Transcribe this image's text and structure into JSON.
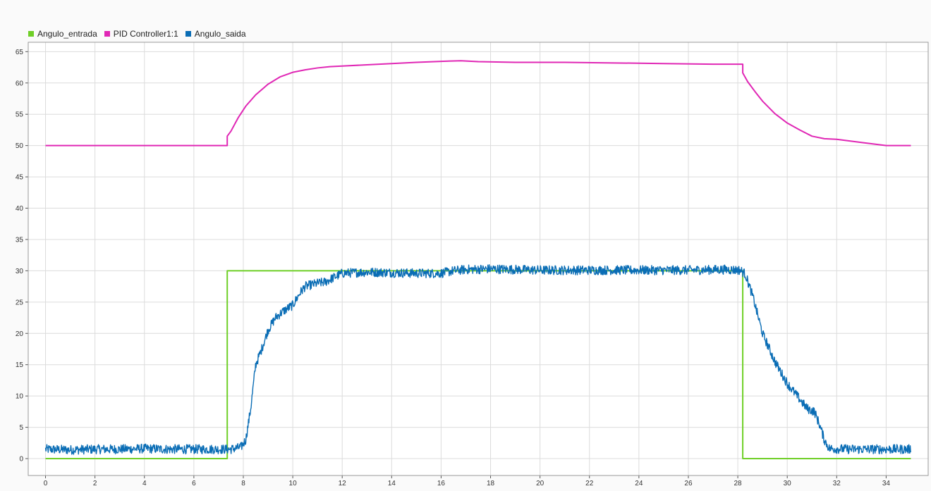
{
  "chart_data": {
    "type": "line",
    "title": "",
    "xlabel": "",
    "ylabel": "",
    "xlim": [
      -0.7,
      35.7
    ],
    "ylim": [
      -2.7,
      66.5
    ],
    "xticks": [
      0,
      2,
      4,
      6,
      8,
      10,
      12,
      14,
      16,
      18,
      20,
      22,
      24,
      26,
      28,
      30,
      32,
      34
    ],
    "yticks": [
      0,
      5,
      10,
      15,
      20,
      25,
      30,
      35,
      40,
      45,
      50,
      55,
      60,
      65
    ],
    "grid": true,
    "legend_position": "top-left",
    "series": [
      {
        "name": "Angulo_entrada",
        "color": "#6fcf27",
        "x": [
          0,
          7.35,
          7.35,
          28.2,
          28.2,
          35
        ],
        "y": [
          0,
          0,
          30,
          30,
          0,
          0
        ]
      },
      {
        "name": "PID Controller1:1",
        "color": "#e027b5",
        "x": [
          0,
          7.35,
          7.35,
          7.5,
          7.8,
          8.1,
          8.5,
          9.0,
          9.5,
          10.0,
          10.5,
          11.0,
          11.5,
          12.0,
          13.0,
          14.0,
          15.0,
          16.0,
          16.8,
          17.5,
          19.0,
          21.0,
          23.0,
          25.0,
          27.0,
          28.2,
          28.2,
          28.4,
          28.7,
          29.0,
          29.5,
          30.0,
          30.5,
          31.0,
          31.5,
          32.0,
          33.0,
          34.0,
          35.0
        ],
        "y": [
          50,
          50,
          51.5,
          52.3,
          54.5,
          56.3,
          58.1,
          59.8,
          61.0,
          61.7,
          62.1,
          62.4,
          62.6,
          62.7,
          62.9,
          63.1,
          63.3,
          63.45,
          63.55,
          63.4,
          63.3,
          63.3,
          63.2,
          63.1,
          63.0,
          63.0,
          61.6,
          60.2,
          58.6,
          57.1,
          55.1,
          53.6,
          52.5,
          51.5,
          51.1,
          51.0,
          50.5,
          50.0,
          50.0
        ]
      },
      {
        "name": "Angulo_saida",
        "color": "#0a6db5",
        "x": [
          0,
          1,
          2,
          3,
          4,
          5,
          6,
          7,
          7.5,
          7.9,
          8.1,
          8.3,
          8.5,
          8.7,
          9.0,
          9.3,
          9.6,
          10.0,
          10.3,
          10.5,
          11.0,
          11.3,
          11.6,
          12.0,
          13.0,
          14.0,
          15.0,
          16.0,
          16.5,
          17.0,
          18.0,
          20.0,
          22.0,
          24.0,
          26.0,
          27.5,
          28.1,
          28.3,
          28.6,
          29.0,
          29.5,
          30.0,
          30.5,
          30.8,
          31.1,
          31.3,
          31.5,
          31.7,
          32.5,
          33.5,
          34.0,
          35.0
        ],
        "y": [
          1.5,
          1.4,
          1.5,
          1.5,
          1.6,
          1.5,
          1.5,
          1.5,
          1.5,
          1.8,
          3.0,
          8.0,
          15.0,
          17.0,
          20.5,
          22.5,
          23.5,
          24.5,
          26.5,
          27.5,
          28.0,
          28.2,
          28.8,
          29.6,
          29.8,
          29.7,
          29.6,
          29.6,
          30.0,
          30.2,
          30.3,
          30.1,
          30.1,
          30.1,
          30.1,
          30.2,
          30.1,
          29.5,
          26.0,
          20.0,
          15.5,
          12.0,
          9.5,
          8.0,
          7.5,
          5.5,
          3.0,
          1.6,
          1.5,
          1.5,
          1.5,
          1.5
        ]
      }
    ]
  }
}
